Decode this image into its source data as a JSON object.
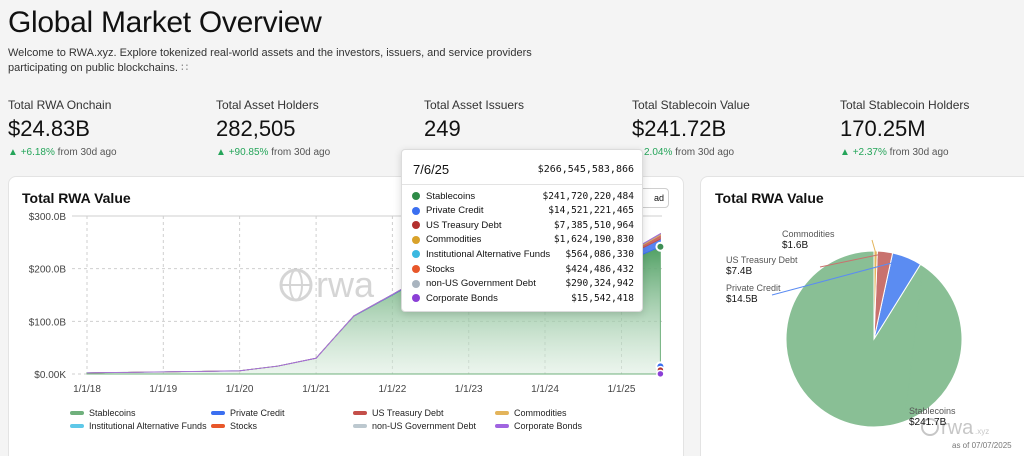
{
  "page": {
    "title": "Global Market Overview",
    "intro": "Welcome to RWA.xyz. Explore tokenized real-world assets and the investors, issuers, and service providers participating on public blockchains."
  },
  "metrics": [
    {
      "label": "Total RWA Onchain",
      "value": "$24.83B",
      "delta": "+6.18%",
      "suffix": " from 30d ago"
    },
    {
      "label": "Total Asset Holders",
      "value": "282,505",
      "delta": "+90.85%",
      "suffix": " from 30d ago"
    },
    {
      "label": "Total Asset Issuers",
      "value": "249",
      "delta": "",
      "suffix": ""
    },
    {
      "label": "Total Stablecoin Value",
      "value": "$241.72B",
      "delta": "2.04%",
      "suffix": " from 30d ago"
    },
    {
      "label": "Total Stablecoin Holders",
      "value": "170.25M",
      "delta": "+2.37%",
      "suffix": " from 30d ago"
    }
  ],
  "area_card": {
    "title": "Total RWA Value",
    "download_label": "ad",
    "watermark": "rwa"
  },
  "pie_card": {
    "title": "Total RWA Value",
    "watermark": "rwa",
    "watermark_suffix": ".xyz",
    "as_of": "as of 07/07/2025"
  },
  "tooltip": {
    "date": "7/6/25",
    "total": "$266,545,583,866",
    "rows": [
      {
        "name": "Stablecoins",
        "value": "$241,720,220,484",
        "color": "#2e8b47"
      },
      {
        "name": "Private Credit",
        "value": "$14,521,221,465",
        "color": "#3b6ff0"
      },
      {
        "name": "US Treasury Debt",
        "value": "$7,385,510,964",
        "color": "#b3302e"
      },
      {
        "name": "Commodities",
        "value": "$1,624,190,830",
        "color": "#d9a22a"
      },
      {
        "name": "Institutional Alternative Funds",
        "value": "$564,086,330",
        "color": "#3bb8e0"
      },
      {
        "name": "Stocks",
        "value": "$424,486,432",
        "color": "#e8572a"
      },
      {
        "name": "non-US Government Debt",
        "value": "$290,324,942",
        "color": "#a9b4bf"
      },
      {
        "name": "Corporate Bonds",
        "value": "$15,542,418",
        "color": "#8b3fd6"
      }
    ]
  },
  "chart_data": [
    {
      "type": "area",
      "title": "Total RWA Value",
      "xlabel": "",
      "ylabel": "",
      "x_ticks": [
        "1/1/18",
        "1/1/19",
        "1/1/20",
        "1/1/21",
        "1/1/22",
        "1/1/23",
        "1/1/24",
        "1/1/25"
      ],
      "y_ticks": [
        "$0.00K",
        "$100.0B",
        "$200.0B",
        "$300.0B"
      ],
      "ylim": [
        0,
        300
      ],
      "y_unit": "billions USD",
      "grid": true,
      "legend_position": "bottom",
      "x": [
        "1/1/18",
        "7/1/18",
        "1/1/19",
        "7/1/19",
        "1/1/20",
        "7/1/20",
        "1/1/21",
        "4/1/21",
        "7/1/21",
        "10/1/21",
        "1/1/22",
        "4/1/22",
        "7/1/22",
        "10/1/22",
        "1/1/23",
        "7/1/23",
        "1/1/24",
        "7/1/24",
        "1/1/25",
        "4/1/25",
        "7/6/25"
      ],
      "series": [
        {
          "name": "Stablecoins",
          "color": "#6fb07c",
          "values": [
            2,
            3,
            4,
            5,
            6,
            15,
            30,
            70,
            110,
            130,
            150,
            170,
            155,
            150,
            145,
            130,
            130,
            155,
            195,
            225,
            241.7
          ]
        },
        {
          "name": "Private Credit",
          "color": "#3b6ff0",
          "values": [
            0,
            0,
            0,
            0,
            0,
            0,
            0,
            0.2,
            0.5,
            0.8,
            1,
            1.5,
            1.7,
            1.8,
            2,
            3,
            5,
            8,
            10,
            12,
            14.5
          ]
        },
        {
          "name": "US Treasury Debt",
          "color": "#c44f4a",
          "values": [
            0,
            0,
            0,
            0,
            0,
            0,
            0,
            0,
            0,
            0,
            0,
            0,
            0,
            0,
            0.1,
            0.5,
            0.8,
            1.5,
            3,
            5,
            7.4
          ]
        },
        {
          "name": "Commodities",
          "color": "#e3b45b",
          "values": [
            0,
            0,
            0,
            0,
            0,
            0,
            0,
            0,
            0,
            0,
            0,
            0,
            0,
            0,
            0,
            0.5,
            0.8,
            1,
            1.2,
            1.4,
            1.6
          ]
        },
        {
          "name": "Institutional Alternative Funds",
          "color": "#5ec8e8",
          "values": [
            0,
            0,
            0,
            0,
            0,
            0,
            0,
            0,
            0,
            0,
            0,
            0,
            0,
            0,
            0,
            0.1,
            0.2,
            0.3,
            0.4,
            0.5,
            0.56
          ]
        },
        {
          "name": "Stocks",
          "color": "#e8572a",
          "values": [
            0,
            0,
            0,
            0,
            0,
            0,
            0,
            0,
            0,
            0,
            0,
            0,
            0,
            0,
            0,
            0,
            0,
            0.1,
            0.2,
            0.3,
            0.42
          ]
        },
        {
          "name": "non-US Government Debt",
          "color": "#bcc8cf",
          "values": [
            0,
            0,
            0,
            0,
            0,
            0,
            0,
            0,
            0,
            0,
            0,
            0,
            0,
            0,
            0,
            0,
            0,
            0.1,
            0.15,
            0.2,
            0.29
          ]
        },
        {
          "name": "Corporate Bonds",
          "color": "#a064e0",
          "values": [
            0,
            0,
            0,
            0,
            0,
            0,
            0,
            0,
            0,
            0,
            0,
            0,
            0,
            0,
            0,
            0,
            0,
            0,
            0,
            0,
            0.02
          ]
        }
      ]
    },
    {
      "type": "pie",
      "title": "Total RWA Value",
      "slices": [
        {
          "name": "Stablecoins",
          "label": "$241.7B",
          "value": 241.7,
          "color": "#89bf95"
        },
        {
          "name": "Private Credit",
          "label": "$14.5B",
          "value": 14.5,
          "color": "#5b8cf2"
        },
        {
          "name": "US Treasury Debt",
          "label": "$7.4B",
          "value": 7.4,
          "color": "#c9726e"
        },
        {
          "name": "Commodities",
          "label": "$1.6B",
          "value": 1.6,
          "color": "#e3b45b"
        }
      ]
    }
  ]
}
